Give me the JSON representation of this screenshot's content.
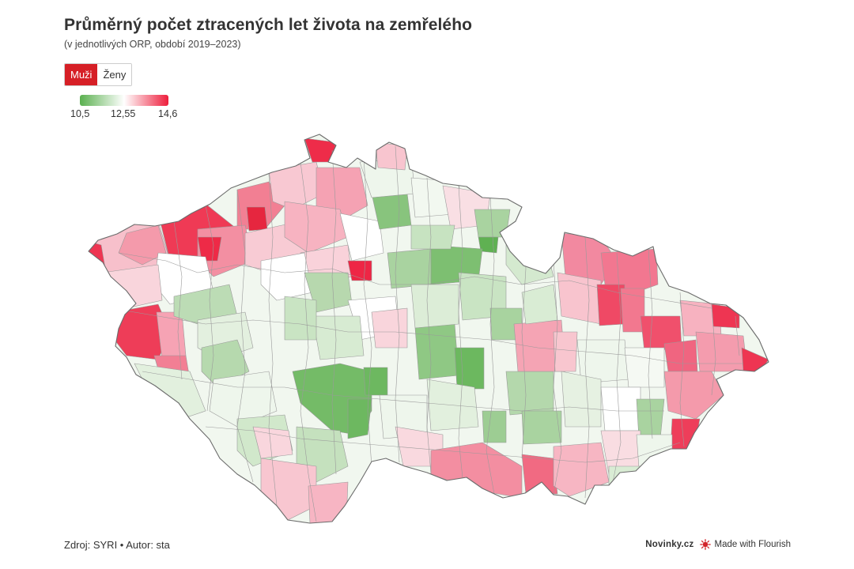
{
  "title": "Průměrný počet ztracených let života na zemřelého",
  "subtitle": "(v jednotlivých ORP, období 2019–2023)",
  "toggle": {
    "options": [
      "Muži",
      "Ženy"
    ],
    "selected": "Muži"
  },
  "legend": {
    "min": "10,5",
    "mid": "12,55",
    "max": "14,6",
    "color_min": "#5ab04f",
    "color_mid": "#ffffff",
    "color_max": "#ee1e3c"
  },
  "footer": {
    "source": "Zdroj: SYRI • Autor: sta",
    "brand": "Novinky.cz",
    "flourish": "Made with Flourish"
  },
  "chart_data": {
    "type": "choropleth",
    "region_unit": "ORP",
    "value_range": [
      10.5,
      14.6
    ],
    "colors": {
      "low": "#5ab04f",
      "mid": "#ffffff",
      "high": "#ee1e3c"
    }
  }
}
